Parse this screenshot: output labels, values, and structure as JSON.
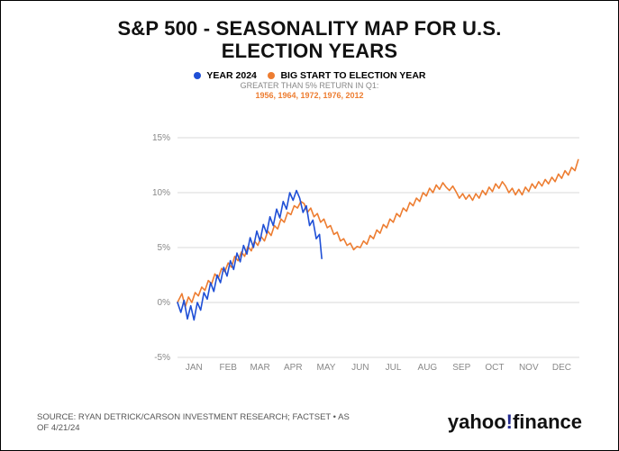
{
  "title": {
    "line1": "S&P 500 - SEASONALITY MAP FOR U.S.",
    "line2": "ELECTION YEARS"
  },
  "legend": {
    "items": [
      {
        "label": "YEAR 2024",
        "color": "#1f4fd6"
      },
      {
        "label": "BIG START TO ELECTION YEAR",
        "color": "#ED7D31"
      }
    ],
    "sub1": "GREATER THAN 5% RETURN IN Q1:",
    "sub2": "1956, 1964, 1972, 1976, 2012"
  },
  "chart": {
    "type": "line",
    "background_color": "#ffffff",
    "grid_color": "#d9d9d9",
    "line_width": 1.6,
    "y": {
      "min": -5,
      "max": 15,
      "step": 5,
      "format": "percent",
      "ticks": [
        -5,
        0,
        5,
        10,
        15
      ],
      "tick_labels": [
        "-5%",
        "0%",
        "5%",
        "10%",
        "15%"
      ],
      "label_fontsize": 10,
      "label_color": "#888"
    },
    "x": {
      "min": 0,
      "max": 365,
      "tick_positions": [
        15,
        46,
        75,
        105,
        135,
        166,
        196,
        227,
        258,
        288,
        319,
        349
      ],
      "tick_labels": [
        "JAN",
        "FEB",
        "MAR",
        "APR",
        "MAY",
        "JUN",
        "JUL",
        "AUG",
        "SEP",
        "OCT",
        "NOV",
        "DEC"
      ],
      "label_fontsize": 10,
      "label_color": "#888"
    },
    "series": [
      {
        "name": "big_start",
        "color": "#ED7D31",
        "points": [
          [
            0,
            0.0
          ],
          [
            4,
            0.8
          ],
          [
            7,
            -0.4
          ],
          [
            10,
            0.5
          ],
          [
            13,
            0.0
          ],
          [
            16,
            0.9
          ],
          [
            19,
            0.6
          ],
          [
            22,
            1.4
          ],
          [
            25,
            1.1
          ],
          [
            28,
            2.0
          ],
          [
            31,
            1.7
          ],
          [
            34,
            2.6
          ],
          [
            37,
            2.2
          ],
          [
            40,
            3.1
          ],
          [
            43,
            2.8
          ],
          [
            46,
            3.6
          ],
          [
            49,
            3.2
          ],
          [
            52,
            4.2
          ],
          [
            55,
            3.8
          ],
          [
            58,
            4.6
          ],
          [
            61,
            4.2
          ],
          [
            64,
            5.1
          ],
          [
            67,
            4.7
          ],
          [
            70,
            5.6
          ],
          [
            73,
            5.2
          ],
          [
            76,
            6.0
          ],
          [
            79,
            5.6
          ],
          [
            82,
            6.5
          ],
          [
            85,
            6.1
          ],
          [
            88,
            7.0
          ],
          [
            91,
            6.7
          ],
          [
            94,
            7.6
          ],
          [
            97,
            7.3
          ],
          [
            100,
            8.2
          ],
          [
            103,
            8.0
          ],
          [
            106,
            8.8
          ],
          [
            109,
            8.6
          ],
          [
            112,
            9.2
          ],
          [
            115,
            9.0
          ],
          [
            118,
            8.2
          ],
          [
            121,
            8.6
          ],
          [
            124,
            7.8
          ],
          [
            127,
            8.1
          ],
          [
            130,
            7.3
          ],
          [
            133,
            7.6
          ],
          [
            136,
            6.8
          ],
          [
            139,
            7.0
          ],
          [
            142,
            6.2
          ],
          [
            145,
            6.4
          ],
          [
            148,
            5.6
          ],
          [
            151,
            5.8
          ],
          [
            154,
            5.2
          ],
          [
            157,
            5.4
          ],
          [
            160,
            4.8
          ],
          [
            163,
            5.1
          ],
          [
            166,
            5.0
          ],
          [
            169,
            5.6
          ],
          [
            172,
            5.3
          ],
          [
            175,
            6.1
          ],
          [
            178,
            5.8
          ],
          [
            181,
            6.6
          ],
          [
            184,
            6.3
          ],
          [
            187,
            7.1
          ],
          [
            190,
            6.8
          ],
          [
            193,
            7.6
          ],
          [
            196,
            7.3
          ],
          [
            199,
            8.1
          ],
          [
            202,
            7.8
          ],
          [
            205,
            8.6
          ],
          [
            208,
            8.3
          ],
          [
            211,
            9.1
          ],
          [
            214,
            8.8
          ],
          [
            217,
            9.5
          ],
          [
            220,
            9.2
          ],
          [
            223,
            10.0
          ],
          [
            226,
            9.7
          ],
          [
            229,
            10.4
          ],
          [
            232,
            10.0
          ],
          [
            235,
            10.7
          ],
          [
            238,
            10.3
          ],
          [
            241,
            10.9
          ],
          [
            244,
            10.5
          ],
          [
            247,
            10.2
          ],
          [
            250,
            10.6
          ],
          [
            253,
            10.1
          ],
          [
            256,
            9.5
          ],
          [
            259,
            9.9
          ],
          [
            262,
            9.4
          ],
          [
            265,
            9.8
          ],
          [
            268,
            9.3
          ],
          [
            271,
            9.9
          ],
          [
            274,
            9.5
          ],
          [
            277,
            10.2
          ],
          [
            280,
            9.8
          ],
          [
            283,
            10.5
          ],
          [
            286,
            10.1
          ],
          [
            289,
            10.8
          ],
          [
            292,
            10.4
          ],
          [
            295,
            11.0
          ],
          [
            298,
            10.6
          ],
          [
            301,
            10.0
          ],
          [
            304,
            10.4
          ],
          [
            307,
            9.8
          ],
          [
            310,
            10.3
          ],
          [
            313,
            9.8
          ],
          [
            316,
            10.5
          ],
          [
            319,
            10.1
          ],
          [
            322,
            10.8
          ],
          [
            325,
            10.4
          ],
          [
            328,
            11.0
          ],
          [
            331,
            10.6
          ],
          [
            334,
            11.2
          ],
          [
            337,
            10.8
          ],
          [
            340,
            11.4
          ],
          [
            343,
            11.0
          ],
          [
            346,
            11.7
          ],
          [
            349,
            11.3
          ],
          [
            352,
            12.0
          ],
          [
            355,
            11.6
          ],
          [
            358,
            12.3
          ],
          [
            361,
            12.0
          ],
          [
            364,
            13.0
          ]
        ]
      },
      {
        "name": "year_2024",
        "color": "#1f4fd6",
        "points": [
          [
            0,
            0.0
          ],
          [
            3,
            -0.9
          ],
          [
            6,
            0.2
          ],
          [
            9,
            -1.5
          ],
          [
            12,
            -0.3
          ],
          [
            15,
            -1.6
          ],
          [
            18,
            0.0
          ],
          [
            21,
            -0.7
          ],
          [
            24,
            0.9
          ],
          [
            27,
            0.3
          ],
          [
            30,
            1.8
          ],
          [
            33,
            1.0
          ],
          [
            36,
            2.5
          ],
          [
            39,
            1.8
          ],
          [
            42,
            3.2
          ],
          [
            45,
            2.4
          ],
          [
            48,
            3.8
          ],
          [
            51,
            3.0
          ],
          [
            54,
            4.5
          ],
          [
            57,
            3.7
          ],
          [
            60,
            5.2
          ],
          [
            63,
            4.4
          ],
          [
            66,
            5.9
          ],
          [
            69,
            5.0
          ],
          [
            72,
            6.5
          ],
          [
            75,
            5.6
          ],
          [
            78,
            7.1
          ],
          [
            81,
            6.3
          ],
          [
            84,
            7.8
          ],
          [
            87,
            7.0
          ],
          [
            90,
            8.5
          ],
          [
            93,
            7.7
          ],
          [
            96,
            9.2
          ],
          [
            99,
            8.5
          ],
          [
            102,
            10.0
          ],
          [
            105,
            9.3
          ],
          [
            108,
            10.2
          ],
          [
            111,
            9.5
          ],
          [
            114,
            8.2
          ],
          [
            117,
            8.8
          ],
          [
            120,
            7.0
          ],
          [
            123,
            7.5
          ],
          [
            126,
            5.8
          ],
          [
            129,
            6.2
          ],
          [
            131,
            4.0
          ]
        ]
      }
    ]
  },
  "footer": {
    "source": "SOURCE: RYAN DETRICK/CARSON INVESTMENT RESEARCH; FACTSET • AS OF 4/21/24",
    "brand": {
      "part1": "yahoo",
      "bang": "!",
      "part2": "finance"
    }
  }
}
